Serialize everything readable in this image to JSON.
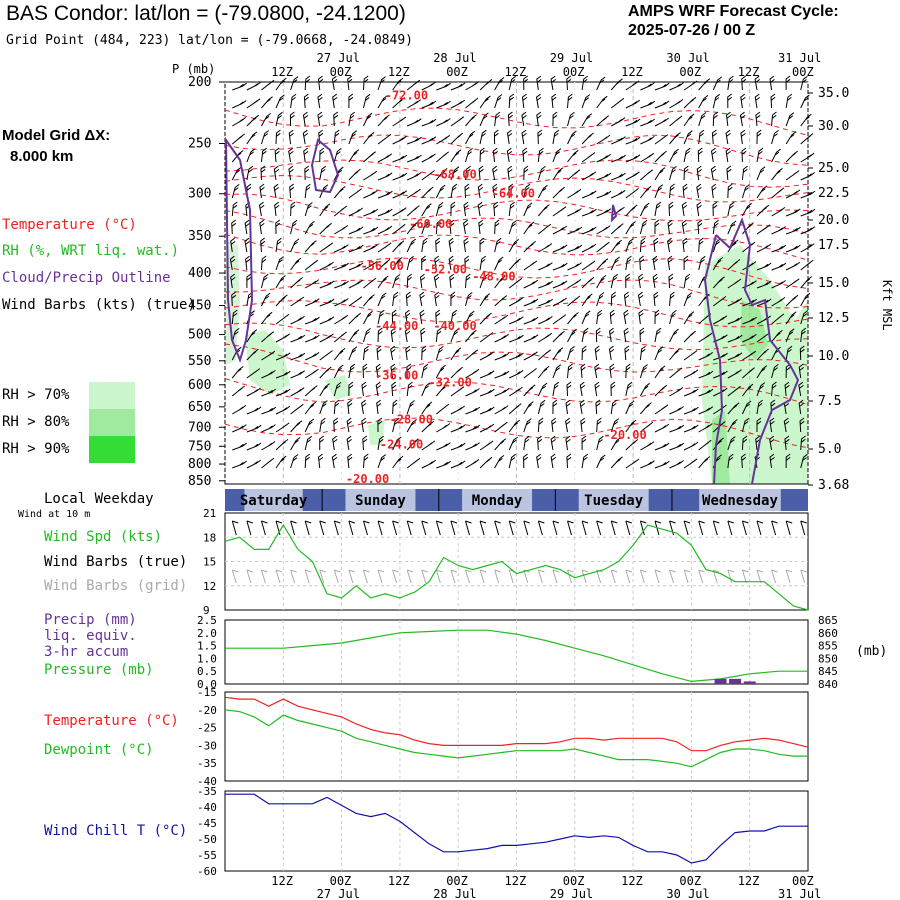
{
  "title": "BAS Condor:  lat/lon = (-79.0800, -24.1200)",
  "subtitle": "Grid Point (484, 223) lat/lon = (-79.0668, -24.0849)",
  "cycle": {
    "line1": "AMPS WRF Forecast Cycle:",
    "line2": "2025-07-26 / 00  Z"
  },
  "model_grid": {
    "label": "Model Grid ΔX:",
    "value": "8.000 km"
  },
  "legend": {
    "temperature": "Temperature (°C)",
    "rh": "RH (%, WRT liq. wat.)",
    "cloud": "Cloud/Precip Outline",
    "wind": "Wind Barbs (kts) (true)"
  },
  "rh_key": [
    {
      "label": "RH > 70%",
      "color": "#ccf7cc"
    },
    {
      "label": "RH > 80%",
      "color": "#9fea9f"
    },
    {
      "label": "RH > 90%",
      "color": "#33dd33"
    }
  ],
  "axis": {
    "pressure_label": "P (mb)",
    "height_label": "Kft MSL",
    "mb_unit": "(mb)",
    "local_weekday": "Local Weekday",
    "wind_at_10m": "Wind at 10 m",
    "time_ticks": [
      "12Z",
      "00Z",
      "12Z",
      "00Z",
      "12Z",
      "00Z",
      "12Z",
      "00Z",
      "12Z",
      "00Z"
    ],
    "date_ticks": [
      "27 Jul",
      "28 Jul",
      "29 Jul",
      "30 Jul",
      "31 Jul"
    ],
    "weekdays": [
      "Saturday",
      "Sunday",
      "Monday",
      "Tuesday",
      "Wednesday"
    ]
  },
  "panel_labels": {
    "wind_spd": "Wind Spd (kts)",
    "wind_barbs_true": "Wind Barbs (true)",
    "wind_barbs_grid": "Wind Barbs (grid)",
    "precip1": "Precip (mm)",
    "precip2": "liq. equiv.",
    "precip3": "3-hr accum",
    "pressure": "Pressure (mb)",
    "temperature": "Temperature (°C)",
    "dewpoint": "Dewpoint (°C)",
    "wind_chill": "Wind Chill T (°C)"
  },
  "colors": {
    "temperature": "#ee2222",
    "green": "#22bb22",
    "cloud": "#663399",
    "blue": "#1111aa",
    "gray": "#aaaaaa",
    "weekday_bar": "#4a5fa8"
  },
  "chart_data": [
    {
      "type": "cross-section",
      "title": "Vertical time section",
      "x_hours": [
        0,
        120
      ],
      "pressure_levels": [
        200,
        250,
        300,
        350,
        400,
        450,
        500,
        550,
        600,
        650,
        700,
        750,
        800,
        850
      ],
      "height_kft": [
        "35.0",
        "30.0",
        "25.0",
        "22.5",
        "20.0",
        "17.5",
        "15.0",
        "12.5",
        "10.0",
        "7.5",
        "5.0",
        "3.68"
      ],
      "temperature_contours": [
        {
          "value": "-72.00",
          "x": 37,
          "p": 210
        },
        {
          "value": "-68.00",
          "x": 47,
          "p": 280
        },
        {
          "value": "-64.00",
          "x": 59,
          "p": 300
        },
        {
          "value": "-60.00",
          "x": 42,
          "p": 335
        },
        {
          "value": "-56.00",
          "x": 32,
          "p": 390
        },
        {
          "value": "-52.00",
          "x": 45,
          "p": 395
        },
        {
          "value": "-48.00",
          "x": 55,
          "p": 405
        },
        {
          "value": "-44.00",
          "x": 35,
          "p": 485
        },
        {
          "value": "-40.00",
          "x": 47,
          "p": 485
        },
        {
          "value": "-36.00",
          "x": 35,
          "p": 580
        },
        {
          "value": "-32.00",
          "x": 46,
          "p": 595
        },
        {
          "value": "-28.00",
          "x": 38,
          "p": 680
        },
        {
          "value": "-24.00",
          "x": 36,
          "p": 745
        },
        {
          "value": "-20.00",
          "x": 82,
          "p": 720
        },
        {
          "value": "-20.00",
          "x": 29,
          "p": 845
        }
      ]
    },
    {
      "type": "line",
      "title": "Wind speed at 10 m",
      "ylabel": "kts",
      "ylim": [
        9,
        21
      ],
      "yticks": [
        9,
        12,
        15,
        18,
        21
      ],
      "x": [
        0,
        3,
        6,
        9,
        12,
        15,
        18,
        21,
        24,
        27,
        30,
        33,
        36,
        39,
        42,
        45,
        48,
        51,
        54,
        57,
        60,
        63,
        66,
        69,
        72,
        75,
        78,
        81,
        84,
        87,
        90,
        93,
        96,
        99,
        102,
        105,
        108,
        111,
        114,
        117,
        120
      ],
      "series": [
        {
          "values": [
            17.5,
            18,
            16.5,
            16.5,
            19.5,
            16.5,
            15,
            11,
            10.5,
            12,
            10.5,
            11,
            10.5,
            11.2,
            12.5,
            15.5,
            14.5,
            14,
            14.5,
            15,
            13.5,
            14,
            14.5,
            14,
            13,
            13.5,
            14,
            15,
            17,
            19.5,
            19,
            18.5,
            17,
            14,
            13.5,
            12.5,
            12.5,
            12.5,
            11,
            9.5,
            9
          ]
        }
      ]
    },
    {
      "type": "line",
      "title": "Pressure and precip",
      "ylabel": "mb",
      "ylim_pressure": [
        840,
        865
      ],
      "ylim_precip": [
        0,
        2.5
      ],
      "pressure_ticks": [
        840,
        845,
        850,
        855,
        860,
        865
      ],
      "precip_ticks": [
        "0.0",
        "0.5",
        "1.0",
        "1.5",
        "2.0",
        "2.5"
      ],
      "x": [
        0,
        6,
        12,
        18,
        24,
        30,
        36,
        42,
        48,
        54,
        60,
        66,
        72,
        78,
        84,
        90,
        96,
        102,
        108,
        114,
        120
      ],
      "series": [
        {
          "name": "Pressure (mb)",
          "values": [
            854,
            854,
            854,
            855,
            856,
            858,
            860,
            860.5,
            861,
            861,
            859.5,
            857,
            854,
            851,
            847.5,
            844,
            841,
            842,
            844,
            845,
            845
          ]
        },
        {
          "name": "Precip (mm)",
          "x": [
            99,
            102,
            105,
            108,
            111
          ],
          "values": [
            0,
            0.2,
            0.2,
            0.1,
            0
          ]
        }
      ]
    },
    {
      "type": "line",
      "title": "Temperature and dewpoint",
      "ylabel": "°C",
      "ylim": [
        -40,
        -15
      ],
      "yticks": [
        -40,
        -35,
        -30,
        -25,
        -20,
        -15
      ],
      "x": [
        0,
        3,
        6,
        9,
        12,
        15,
        18,
        21,
        24,
        27,
        30,
        33,
        36,
        39,
        42,
        45,
        48,
        51,
        54,
        57,
        60,
        63,
        66,
        69,
        72,
        75,
        78,
        81,
        84,
        87,
        90,
        93,
        96,
        99,
        102,
        105,
        108,
        111,
        114,
        117,
        120
      ],
      "series": [
        {
          "name": "Temperature (°C)",
          "values": [
            -16.5,
            -17,
            -17,
            -19,
            -17,
            -19,
            -20,
            -21,
            -22,
            -24,
            -25.5,
            -26.5,
            -27,
            -28.5,
            -29.5,
            -30,
            -30,
            -30,
            -30,
            -30,
            -29.5,
            -29.5,
            -29.5,
            -29,
            -28,
            -28,
            -28.5,
            -28,
            -28,
            -28,
            -28,
            -29,
            -31.5,
            -31.5,
            -30,
            -29,
            -28.5,
            -28,
            -28.5,
            -29.5,
            -30.5
          ]
        },
        {
          "name": "Dewpoint (°C)",
          "values": [
            -20,
            -20.5,
            -22,
            -24.5,
            -21.5,
            -23,
            -24,
            -25,
            -26,
            -28,
            -29,
            -30,
            -31,
            -32,
            -32.5,
            -33,
            -33.5,
            -33,
            -32.5,
            -32,
            -31.5,
            -31.5,
            -31.5,
            -31.5,
            -31,
            -32,
            -33,
            -34,
            -34,
            -34,
            -34.5,
            -35,
            -36,
            -34,
            -32,
            -31,
            -31,
            -31.5,
            -32.5,
            -33,
            -33
          ]
        }
      ]
    },
    {
      "type": "line",
      "title": "Wind chill",
      "ylabel": "°C",
      "ylim": [
        -60,
        -35
      ],
      "yticks": [
        -60,
        -55,
        -50,
        -45,
        -40,
        -35
      ],
      "x": [
        0,
        3,
        6,
        9,
        12,
        15,
        18,
        21,
        24,
        27,
        30,
        33,
        36,
        39,
        42,
        45,
        48,
        51,
        54,
        57,
        60,
        63,
        66,
        69,
        72,
        75,
        78,
        81,
        84,
        87,
        90,
        93,
        96,
        99,
        102,
        105,
        108,
        111,
        114,
        117,
        120
      ],
      "series": [
        {
          "name": "Wind Chill T (°C)",
          "values": [
            -36,
            -36,
            -36,
            -39,
            -39,
            -39,
            -39,
            -37,
            -39.5,
            -42,
            -43,
            -42,
            -44.5,
            -48,
            -51.5,
            -54,
            -54,
            -53.5,
            -53,
            -52,
            -52,
            -51.5,
            -51,
            -50,
            -49,
            -49.5,
            -49,
            -49.5,
            -52,
            -54,
            -54,
            -55,
            -57.5,
            -56.5,
            -52,
            -48,
            -47.5,
            -47.5,
            -46,
            -46,
            -46
          ]
        }
      ]
    }
  ]
}
